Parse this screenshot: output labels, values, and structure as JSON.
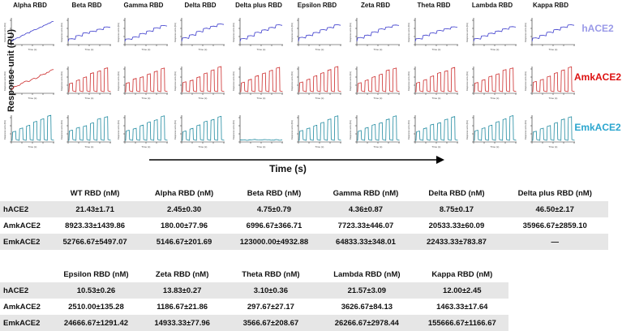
{
  "figure": {
    "y_axis_title": "Response unit (RU)",
    "x_axis_title": "Time (s)",
    "variants": [
      "Alpha RBD",
      "Beta RBD",
      "Gamma RBD",
      "Delta RBD",
      "Delta plus RBD",
      "Epsilon RBD",
      "Zeta RBD",
      "Theta RBD",
      "Lambda RBD",
      "Kappa RBD"
    ],
    "receptors": [
      {
        "name": "hACE2",
        "color": "#9a9ae8",
        "trace_color": "#3a3acc"
      },
      {
        "name": "AmkACE2",
        "color": "#dd1111",
        "trace_color": "#cc2a2a"
      },
      {
        "name": "EmkACE2",
        "color": "#2ba6cf",
        "trace_color": "#1f8aa0"
      }
    ],
    "mini_axis_label_y": "Response units (RU)",
    "mini_axis_label_x": "Time (s)"
  },
  "chart_data": [
    {
      "type": "line",
      "title": "Alpha RBD",
      "ylabel": "Response units (RU)",
      "xlabel": "Time (s)",
      "series": [
        {
          "name": "hACE2",
          "shape": "steady-rise"
        },
        {
          "name": "AmkACE2",
          "shape": "steady-rise-noisy"
        },
        {
          "name": "EmkACE2",
          "shape": "pulse-train"
        }
      ]
    },
    {
      "type": "line",
      "title": "Beta RBD",
      "ylabel": "Response units (RU)",
      "xlabel": "Time (s)",
      "series": [
        {
          "name": "hACE2",
          "shape": "stepped-rise"
        },
        {
          "name": "AmkACE2",
          "shape": "pulse-train"
        },
        {
          "name": "EmkACE2",
          "shape": "pulse-train"
        }
      ]
    },
    {
      "type": "line",
      "title": "Gamma RBD",
      "ylabel": "Response units (RU)",
      "xlabel": "Time (s)",
      "series": [
        {
          "name": "hACE2",
          "shape": "stepped-rise"
        },
        {
          "name": "AmkACE2",
          "shape": "pulse-train"
        },
        {
          "name": "EmkACE2",
          "shape": "pulse-train"
        }
      ]
    },
    {
      "type": "line",
      "title": "Delta RBD",
      "ylabel": "Response units (RU)",
      "xlabel": "Time (s)",
      "series": [
        {
          "name": "hACE2",
          "shape": "stepped-rise"
        },
        {
          "name": "AmkACE2",
          "shape": "pulse-train"
        },
        {
          "name": "EmkACE2",
          "shape": "pulse-train"
        }
      ]
    },
    {
      "type": "line",
      "title": "Delta plus RBD",
      "ylabel": "Response units (RU)",
      "xlabel": "Time (s)",
      "series": [
        {
          "name": "hACE2",
          "shape": "stepped-rise"
        },
        {
          "name": "AmkACE2",
          "shape": "pulse-train"
        },
        {
          "name": "EmkACE2",
          "shape": "flat"
        }
      ]
    },
    {
      "type": "line",
      "title": "Epsilon RBD",
      "ylabel": "Response units (RU)",
      "xlabel": "Time (s)",
      "series": [
        {
          "name": "hACE2",
          "shape": "stepped-rise"
        },
        {
          "name": "AmkACE2",
          "shape": "pulse-train"
        },
        {
          "name": "EmkACE2",
          "shape": "pulse-train"
        }
      ]
    },
    {
      "type": "line",
      "title": "Zeta RBD",
      "ylabel": "Response units (RU)",
      "xlabel": "Time (s)",
      "series": [
        {
          "name": "hACE2",
          "shape": "stepped-rise"
        },
        {
          "name": "AmkACE2",
          "shape": "pulse-train"
        },
        {
          "name": "EmkACE2",
          "shape": "pulse-train"
        }
      ]
    },
    {
      "type": "line",
      "title": "Theta RBD",
      "ylabel": "Response units (RU)",
      "xlabel": "Time (s)",
      "series": [
        {
          "name": "hACE2",
          "shape": "stepped-rise"
        },
        {
          "name": "AmkACE2",
          "shape": "pulse-train"
        },
        {
          "name": "EmkACE2",
          "shape": "pulse-train"
        }
      ]
    },
    {
      "type": "line",
      "title": "Lambda RBD",
      "ylabel": "Response units (RU)",
      "xlabel": "Time (s)",
      "series": [
        {
          "name": "hACE2",
          "shape": "stepped-rise"
        },
        {
          "name": "AmkACE2",
          "shape": "pulse-train"
        },
        {
          "name": "EmkACE2",
          "shape": "pulse-train"
        }
      ]
    },
    {
      "type": "line",
      "title": "Kappa RBD",
      "ylabel": "Response units (RU)",
      "xlabel": "Time (s)",
      "series": [
        {
          "name": "hACE2",
          "shape": "stepped-rise"
        },
        {
          "name": "AmkACE2",
          "shape": "pulse-train"
        },
        {
          "name": "EmkACE2",
          "shape": "pulse-train"
        }
      ]
    }
  ],
  "table1": {
    "headers": [
      "",
      "WT RBD (nM)",
      "Alpha RBD (nM)",
      "Beta RBD (nM)",
      "Gamma RBD (nM)",
      "Delta RBD (nM)",
      "Delta plus RBD (nM)"
    ],
    "rows": [
      [
        "hACE2",
        "21.43±1.71",
        "2.45±0.30",
        "4.75±0.79",
        "4.36±0.87",
        "8.75±0.17",
        "46.50±2.17"
      ],
      [
        "AmkACE2",
        "8923.33±1439.86",
        "180.00±77.96",
        "6996.67±366.71",
        "7723.33±446.07",
        "20533.33±60.09",
        "35966.67±2859.10"
      ],
      [
        "EmkACE2",
        "52766.67±5497.07",
        "5146.67±201.69",
        "123000.00±4932.88",
        "64833.33±348.01",
        "22433.33±783.87",
        "—"
      ]
    ]
  },
  "table2": {
    "headers": [
      "",
      "Epsilon RBD (nM)",
      "Zeta RBD (nM)",
      "Theta RBD (nM)",
      "Lambda RBD (nM)",
      "Kappa RBD (nM)"
    ],
    "rows": [
      [
        "hACE2",
        "10.53±0.26",
        "13.83±0.27",
        "3.10±0.36",
        "21.57±3.09",
        "12.00±2.45"
      ],
      [
        "AmkACE2",
        "2510.00±135.28",
        "1186.67±21.86",
        "297.67±27.17",
        "3626.67±84.13",
        "1463.33±17.64"
      ],
      [
        "EmkACE2",
        "24666.67±1291.42",
        "14933.33±77.96",
        "3566.67±208.67",
        "26266.67±2978.44",
        "155666.67±1166.67"
      ]
    ]
  }
}
